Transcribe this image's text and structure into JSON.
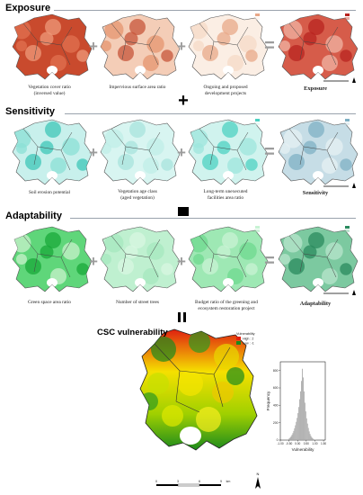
{
  "sections": [
    {
      "title": "Exposure",
      "panels": [
        {
          "label": "Vegetation cover ratio\n(inversed value)",
          "colors": [
            "#c94a2d",
            "#e07250",
            "#ee9a7a"
          ]
        },
        {
          "label": "Impervious surface area ratio",
          "colors": [
            "#f4cdb7",
            "#e6946f",
            "#c7543a"
          ]
        },
        {
          "label": "Ongoing and proposed\ndevelopment projects",
          "colors": [
            "#fbeee4",
            "#f5dac7",
            "#e8a888"
          ]
        },
        {
          "label": "Exposure",
          "colors": [
            "#d65c4a",
            "#f0b4a4",
            "#b82420"
          ]
        }
      ],
      "legend": [
        "High",
        "Low"
      ]
    },
    {
      "title": "Sensitivity",
      "panels": [
        {
          "label": "Soil erosion potential",
          "colors": [
            "#c8f0ec",
            "#8be0d6",
            "#3fc7b8"
          ]
        },
        {
          "label": "Vegetation age class\n(aged vegetation)",
          "colors": [
            "#d8f5f1",
            "#c0ede7",
            "#a8e3dc"
          ]
        },
        {
          "label": "Long-term unexecuted\nfacilities area ratio",
          "colors": [
            "#d0f3ee",
            "#9ee6dc",
            "#4ed1c1"
          ]
        },
        {
          "label": "Sensitivity",
          "colors": [
            "#c6dde6",
            "#e6f0f3",
            "#7fb0c4"
          ]
        }
      ],
      "legend": [
        "High",
        "Low"
      ]
    },
    {
      "title": "Adaptability",
      "panels": [
        {
          "label": "Green space area ratio",
          "colors": [
            "#5fd67a",
            "#c8f2cc",
            "#18a83a"
          ]
        },
        {
          "label": "Number of street  trees",
          "colors": [
            "#bff0d0",
            "#a6e8bf",
            "#d8f7e2"
          ]
        },
        {
          "label": "Budget ratio of the greening and\necosystem restoration project",
          "colors": [
            "#9ee8b4",
            "#6dda8f",
            "#c8f3d4"
          ]
        },
        {
          "label": "Adaptability",
          "colors": [
            "#7cc9a0",
            "#b8e4cc",
            "#2a8a5e"
          ]
        }
      ],
      "legend": [
        "High",
        "Low"
      ]
    }
  ],
  "vulnerability": {
    "title": "CSC vulnerability",
    "legend_title": "Vulnerability",
    "legend_high": "High : 2",
    "legend_low": "Low : -1",
    "scale_labels": [
      "0",
      "3",
      "6",
      "9",
      "km"
    ],
    "north": "N"
  },
  "chart_data": {
    "type": "bar",
    "xlabel": "Vulnerability",
    "ylabel": "Frequency",
    "x_ticks": [
      "-1.00",
      "-0.50",
      "0.00",
      "0.50",
      "1.00",
      "1.50"
    ],
    "y_ticks": [
      "0",
      "200",
      "400",
      "600",
      "800"
    ],
    "xlim": [
      -1.0,
      1.6
    ],
    "ylim": [
      0,
      900
    ],
    "bin_width": 0.05,
    "bin_starts": [
      -0.6,
      -0.55,
      -0.5,
      -0.45,
      -0.4,
      -0.35,
      -0.3,
      -0.25,
      -0.2,
      -0.15,
      -0.1,
      -0.05,
      0.0,
      0.05,
      0.1,
      0.15,
      0.2,
      0.25,
      0.3,
      0.35,
      0.4,
      0.45,
      0.5,
      0.55,
      0.6,
      0.65,
      0.7,
      0.75,
      0.8,
      0.85,
      0.9,
      0.95,
      1.0,
      1.05
    ],
    "values": [
      6,
      12,
      20,
      30,
      44,
      60,
      80,
      105,
      135,
      170,
      210,
      255,
      310,
      380,
      470,
      560,
      680,
      820,
      720,
      560,
      430,
      330,
      250,
      190,
      140,
      100,
      70,
      48,
      32,
      20,
      12,
      7,
      4,
      2
    ],
    "color": "#a8a8a8"
  }
}
